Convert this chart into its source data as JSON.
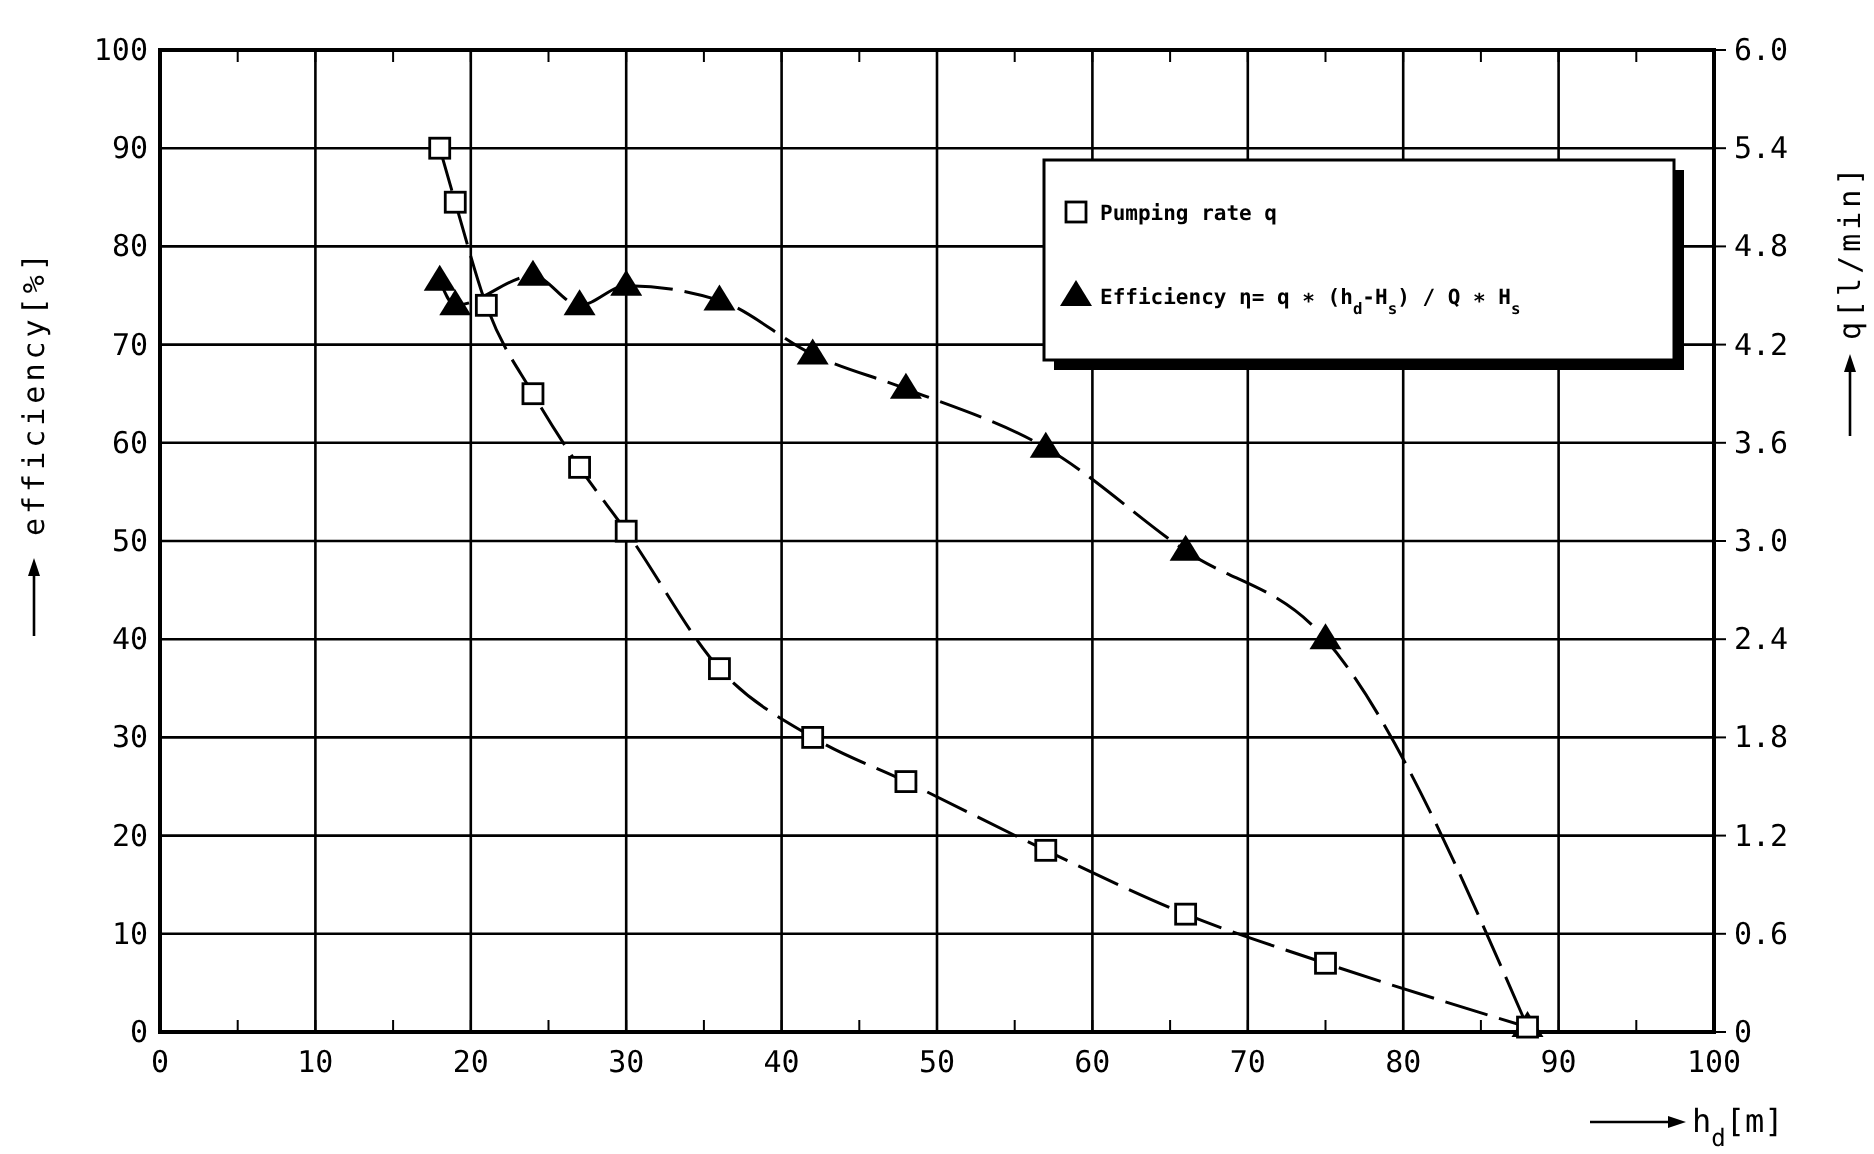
{
  "chart_data": {
    "type": "line",
    "xlabel": "h$_{d}$[m]",
    "ylabel": "efficiency[%]",
    "y2label": "q[l/min]",
    "xlim": [
      0,
      100
    ],
    "ylim": [
      0,
      100
    ],
    "y2lim": [
      0,
      6
    ],
    "xticks": [
      0,
      {
        "value": 5,
        "label": null
      },
      10,
      {
        "value": 15,
        "label": null
      },
      20,
      {
        "value": 25,
        "label": null
      },
      30,
      {
        "value": 35,
        "label": null
      },
      40,
      {
        "value": 45,
        "label": null
      },
      50,
      {
        "value": 55,
        "label": null
      },
      60,
      {
        "value": 65,
        "label": null
      },
      70,
      {
        "value": 75,
        "label": null
      },
      80,
      {
        "value": 85,
        "label": null
      },
      90,
      {
        "value": 95,
        "label": null
      },
      100
    ],
    "yticks": [
      0,
      10,
      20,
      30,
      40,
      50,
      60,
      70,
      80,
      90,
      100
    ],
    "y2ticks": [
      0,
      0.6,
      1.2,
      1.8,
      2.4,
      {
        "value": 3,
        "label": "3.0"
      },
      3.6,
      4.2,
      4.8,
      5.4,
      {
        "value": 6,
        "label": "6.0"
      }
    ],
    "grid": true,
    "legend": "top right",
    "line_style": "dashed",
    "series": [
      {
        "name": "Pumping rate q",
        "color": "#000000",
        "marker": "square",
        "axis": "y2",
        "x": [
          18,
          19,
          21,
          24,
          27,
          30,
          36,
          42,
          48,
          57,
          66,
          75,
          88
        ],
        "values": [
          5.4,
          5.07,
          4.44,
          3.9,
          3.45,
          3.06,
          2.22,
          1.8,
          1.53,
          1.11,
          0.72,
          0.42,
          0.03
        ]
      },
      {
        "name": "Efficiency η= q ∗ (h$_{d}$-H$_{s}$) / Q ∗ H$_{s}$",
        "color": "#000000",
        "marker": "triangle",
        "x": [
          18,
          19,
          24,
          27,
          30,
          36,
          42,
          48,
          57,
          66,
          75,
          88
        ],
        "values": [
          76.5,
          74,
          77,
          74,
          76,
          74.5,
          69,
          65.5,
          59.5,
          49,
          40,
          0.5
        ]
      }
    ]
  }
}
